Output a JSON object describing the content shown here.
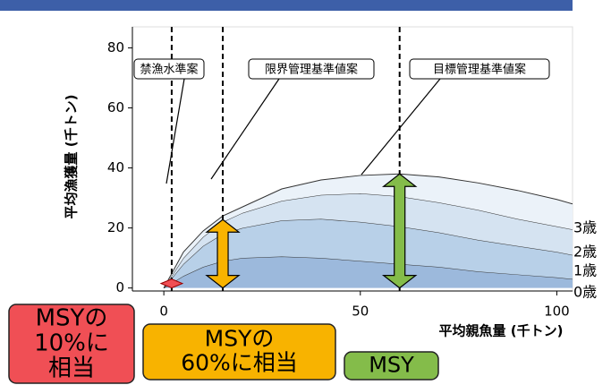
{
  "chart_data": {
    "type": "stacked_area",
    "x_label": "平均親魚量 (千トン)",
    "y_label": "平均漁獲量 (千トン)",
    "xlim": [
      -8,
      104
    ],
    "ylim": [
      -1,
      87
    ],
    "xticks": [
      0,
      50,
      100
    ],
    "yticks": [
      0,
      20,
      40,
      60,
      80
    ],
    "x": [
      0,
      5,
      10,
      15,
      20,
      30,
      40,
      50,
      60,
      70,
      80,
      90,
      100,
      104
    ],
    "series": [
      {
        "name": "0歳",
        "color": "#9cb9dc",
        "values": [
          0,
          4,
          7,
          9,
          10,
          10.5,
          10,
          9,
          8,
          7,
          5.5,
          4.5,
          3.5,
          3
        ]
      },
      {
        "name": "1歳",
        "color": "#b8d0e8",
        "values": [
          0,
          4,
          7,
          9,
          10,
          12,
          13,
          13,
          12.5,
          11.5,
          10.5,
          9.5,
          8.5,
          8
        ]
      },
      {
        "name": "2歳",
        "color": "#d5e3f1",
        "values": [
          0,
          2,
          3,
          4,
          5,
          6.5,
          8,
          9.5,
          10,
          10,
          10,
          9,
          8.5,
          8.5
        ]
      },
      {
        "name": "3歳",
        "color": "#ebf2f9",
        "values": [
          0,
          2,
          2,
          2,
          2,
          4,
          5,
          6,
          7.5,
          8.5,
          9,
          9.5,
          9,
          8.5
        ]
      }
    ],
    "reference_lines": [
      {
        "x": 2,
        "label": "禁漁水準案"
      },
      {
        "x": 15,
        "label": "限界管理基準値案"
      },
      {
        "x": 60,
        "label": "目標管理基準値案"
      }
    ],
    "reference_catch": [
      {
        "x": 2,
        "value": 1.5,
        "color": "#f04f55",
        "label": [
          "MSYの",
          "10%に",
          "相当"
        ]
      },
      {
        "x": 15,
        "value": 22.8,
        "color": "#f8b300",
        "label": [
          "MSYの",
          "60%に相当"
        ]
      },
      {
        "x": 60,
        "value": 38,
        "color": "#84bc4a",
        "label": [
          "MSY"
        ]
      }
    ]
  }
}
